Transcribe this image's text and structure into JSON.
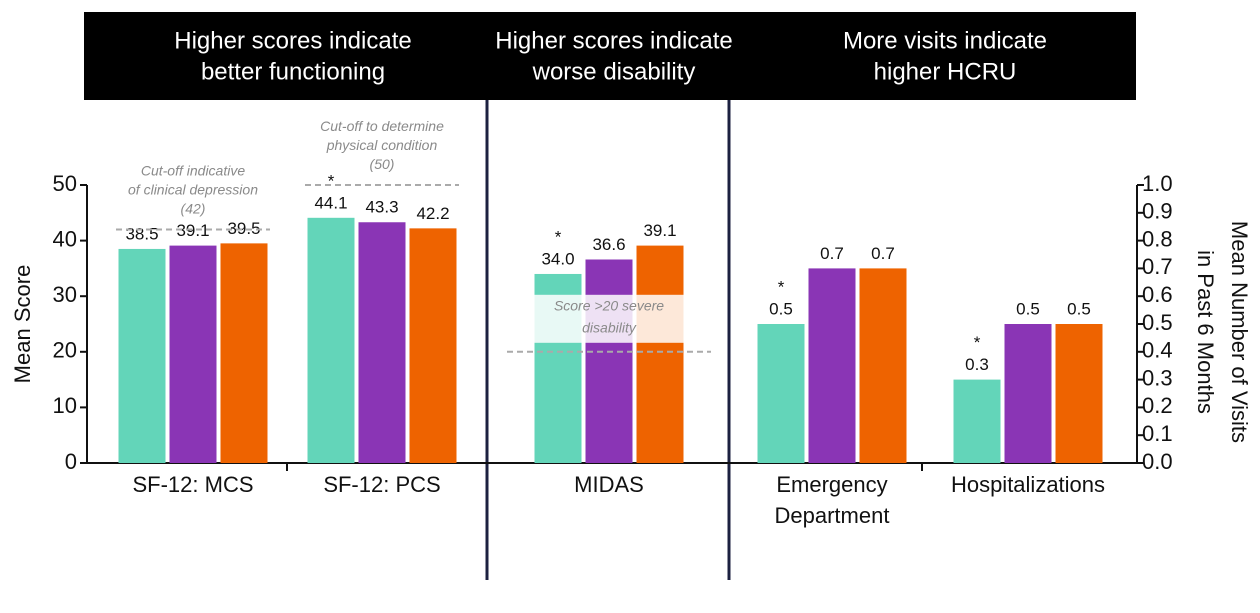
{
  "chart_data": {
    "type": "bar",
    "headers": [
      [
        "Higher scores indicate",
        "better functioning"
      ],
      [
        "Higher scores indicate",
        "worse disability"
      ],
      [
        "More visits indicate",
        "higher HCRU"
      ]
    ],
    "categories": [
      [
        "SF-12: MCS"
      ],
      [
        "SF-12: PCS"
      ],
      [
        "MIDAS"
      ],
      [
        "Emergency",
        "Department"
      ],
      [
        "Hospitalizations"
      ]
    ],
    "category_axis": [
      "y",
      "y",
      "y",
      "y2",
      "y2"
    ],
    "series": [
      {
        "color": "#63d5b9",
        "values": [
          38.5,
          44.1,
          34,
          0.5,
          0.3
        ],
        "value_labels": [
          "38.5",
          "44.1",
          "34.0",
          "0.5",
          "0.3"
        ]
      },
      {
        "color": "#8a35b5",
        "values": [
          39.1,
          43.3,
          36.6,
          0.7,
          0.5
        ],
        "value_labels": [
          "39.1",
          "43.3",
          "36.6",
          "0.7",
          "0.5"
        ]
      },
      {
        "color": "#ee6300",
        "values": [
          39.5,
          42.2,
          39.1,
          0.7,
          0.5
        ],
        "value_labels": [
          "39.5",
          "42.2",
          "39.1",
          "0.7",
          "0.5"
        ]
      }
    ],
    "asterisks": {
      "label": "*",
      "series": 0,
      "categories": [
        1,
        2,
        3,
        4
      ]
    },
    "reference_lines": [
      {
        "category": 0,
        "value": 42,
        "label": [
          "Cut-off indicative",
          "of clinical depression",
          "(42)"
        ]
      },
      {
        "category": 1,
        "value": 50,
        "label": [
          "Cut-off to determine",
          "physical condition",
          "(50)"
        ]
      },
      {
        "category": 2,
        "value": 20,
        "label": [
          "Score >20 severe",
          "disability"
        ]
      }
    ],
    "ylabel": "Mean Score",
    "y2label": [
      "Mean Number of Visits",
      "in Past 6 Months"
    ],
    "ylim": [
      0,
      50
    ],
    "yticks": [
      0,
      10,
      20,
      30,
      40,
      50
    ],
    "y2lim": [
      0,
      1
    ],
    "y2ticks": [
      {
        "value": 0,
        "label": "0.0"
      },
      0.1,
      0.2,
      0.3,
      0.4,
      0.5,
      0.6,
      0.7,
      0.8,
      0.9,
      {
        "value": 1,
        "label": "1.0"
      }
    ]
  }
}
